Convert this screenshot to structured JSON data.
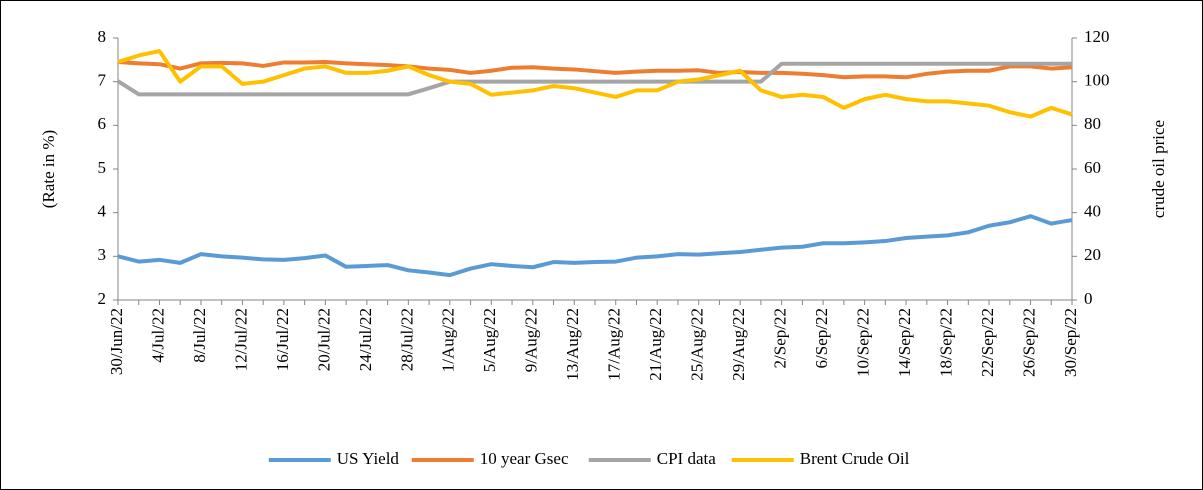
{
  "chart_data": {
    "type": "line",
    "y_label": "(Rate in %)",
    "y2_label": "crude oil price",
    "categories": [
      "30/Jun/22",
      null,
      "4/Jul/22",
      null,
      "8/Jul/22",
      null,
      "12/Jul/22",
      null,
      "16/Jul/22",
      null,
      "20/Jul/22",
      null,
      "24/Jul/22",
      null,
      "28/Jul/22",
      null,
      "1/Aug/22",
      null,
      "5/Aug/22",
      null,
      "9/Aug/22",
      null,
      "13/Aug/22",
      null,
      "17/Aug/22",
      null,
      "21/Aug/22",
      null,
      "25/Aug/22",
      null,
      "29/Aug/22",
      null,
      "2/Sep/22",
      null,
      "6/Sep/22",
      null,
      "10/Sep/22",
      null,
      "14/Sep/22",
      null,
      "18/Sep/22",
      null,
      "22/Sep/22",
      null,
      "26/Sep/22",
      null,
      "30/Sep/22"
    ],
    "series": [
      {
        "name": "US Yield",
        "color": "#5b9bd5",
        "values": [
          3.0,
          2.88,
          2.92,
          2.85,
          3.05,
          3.0,
          2.97,
          2.93,
          2.92,
          2.96,
          3.02,
          2.76,
          2.78,
          2.8,
          2.68,
          2.63,
          2.57,
          2.72,
          2.82,
          2.78,
          2.75,
          2.87,
          2.85,
          2.87,
          2.88,
          2.97,
          3.0,
          3.05,
          3.04,
          3.07,
          3.1,
          3.15,
          3.2,
          3.22,
          3.3,
          3.3,
          3.32,
          3.35,
          3.42,
          3.45,
          3.48,
          3.55,
          3.7,
          3.78,
          3.92,
          3.75,
          3.83
        ]
      },
      {
        "name": "10 year Gsec",
        "color": "#ed7d31",
        "values": [
          7.45,
          7.42,
          7.4,
          7.3,
          7.42,
          7.43,
          7.42,
          7.36,
          7.44,
          7.44,
          7.45,
          7.42,
          7.4,
          7.38,
          7.35,
          7.3,
          7.27,
          7.2,
          7.25,
          7.32,
          7.33,
          7.3,
          7.28,
          7.24,
          7.2,
          7.23,
          7.25,
          7.25,
          7.26,
          7.2,
          7.22,
          7.2,
          7.2,
          7.18,
          7.15,
          7.1,
          7.12,
          7.12,
          7.1,
          7.18,
          7.23,
          7.25,
          7.25,
          7.35,
          7.35,
          7.3,
          7.33
        ]
      },
      {
        "name": "CPI data",
        "color": "#a5a5a5",
        "values": [
          7.01,
          6.71,
          6.71,
          6.71,
          6.71,
          6.71,
          6.71,
          6.71,
          6.71,
          6.71,
          6.71,
          6.71,
          6.71,
          6.71,
          6.71,
          6.85,
          7.0,
          7.0,
          7.0,
          7.0,
          7.0,
          7.0,
          7.0,
          7.0,
          7.0,
          7.0,
          7.0,
          7.0,
          7.0,
          7.0,
          7.0,
          7.0,
          7.41,
          7.41,
          7.41,
          7.41,
          7.41,
          7.41,
          7.41,
          7.41,
          7.41,
          7.41,
          7.41,
          7.41,
          7.41,
          7.41,
          7.41
        ]
      },
      {
        "name": "Brent Crude Oil",
        "color": "#ffc000",
        "axis": "y2",
        "values": [
          109,
          112,
          114,
          100,
          107,
          107,
          99,
          100,
          103,
          106,
          107,
          104,
          104,
          105,
          107,
          103,
          100,
          99,
          94,
          95,
          96,
          98,
          97,
          95,
          93,
          96,
          96,
          100,
          101,
          103,
          105,
          96,
          93,
          94,
          93,
          88,
          92,
          94,
          92,
          91,
          91,
          90,
          89,
          86,
          84,
          88,
          85
        ]
      }
    ],
    "ylim": [
      2,
      8
    ],
    "yticks": [
      2,
      3,
      4,
      5,
      6,
      7,
      8
    ],
    "y2lim": [
      0,
      120
    ],
    "y2ticks": [
      0,
      20,
      40,
      60,
      80,
      100,
      120
    ],
    "grid": false,
    "legend": "bottom"
  }
}
